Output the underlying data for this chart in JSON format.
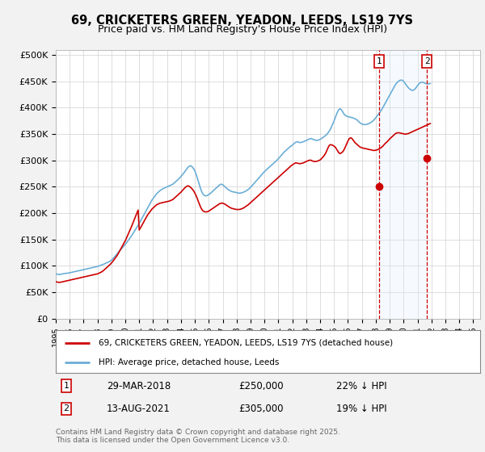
{
  "title": "69, CRICKETERS GREEN, YEADON, LEEDS, LS19 7YS",
  "subtitle": "Price paid vs. HM Land Registry's House Price Index (HPI)",
  "ylabel_ticks": [
    "£0",
    "£50K",
    "£100K",
    "£150K",
    "£200K",
    "£250K",
    "£300K",
    "£350K",
    "£400K",
    "£450K",
    "£500K"
  ],
  "ytick_values": [
    0,
    50000,
    100000,
    150000,
    200000,
    250000,
    300000,
    350000,
    400000,
    450000,
    500000
  ],
  "xlim": [
    1995.0,
    2025.5
  ],
  "ylim": [
    0,
    510000
  ],
  "hpi_color": "#6baed6",
  "price_color": "#cc0000",
  "vline_color": "#cc0000",
  "vline_x1": 2018.25,
  "vline_x2": 2021.67,
  "legend_label1": "69, CRICKETERS GREEN, YEADON, LEEDS, LS19 7YS (detached house)",
  "legend_label2": "HPI: Average price, detached house, Leeds",
  "sale1_date": "29-MAR-2018",
  "sale1_price": "£250,000",
  "sale1_hpi": "22% ↓ HPI",
  "sale2_date": "13-AUG-2021",
  "sale2_price": "£305,000",
  "sale2_hpi": "19% ↓ HPI",
  "footnote": "Contains HM Land Registry data © Crown copyright and database right 2025.\nThis data is licensed under the Open Government Licence v3.0.",
  "bg_color": "#f2f2f2",
  "plot_bg_color": "#ffffff",
  "shade_x1": 2018.25,
  "shade_x2": 2021.67,
  "shade_color": "#ddeeff",
  "hpi_monthly": [
    85000,
    84500,
    84000,
    83800,
    84000,
    84500,
    85000,
    85500,
    85800,
    86000,
    86200,
    86500,
    87000,
    87500,
    88000,
    88500,
    89000,
    89500,
    90000,
    90500,
    91000,
    91500,
    92000,
    92500,
    93000,
    93500,
    94000,
    94500,
    95000,
    95500,
    96000,
    96500,
    97000,
    97500,
    98000,
    98500,
    99000,
    99800,
    100600,
    101400,
    102200,
    103000,
    104000,
    105000,
    106000,
    107000,
    108000,
    109000,
    111000,
    113000,
    115500,
    118000,
    120500,
    123000,
    126000,
    128500,
    131000,
    133500,
    136000,
    138500,
    141000,
    144000,
    147000,
    150000,
    153000,
    156000,
    159500,
    163000,
    166500,
    170000,
    173500,
    177000,
    181000,
    185000,
    189000,
    193000,
    197000,
    201000,
    205000,
    209000,
    213000,
    217000,
    221000,
    225000,
    228000,
    231000,
    234000,
    237000,
    239000,
    241000,
    243000,
    244500,
    246000,
    247000,
    248000,
    249000,
    250000,
    251000,
    252000,
    253000,
    254000,
    255000,
    257000,
    259000,
    261000,
    263000,
    265000,
    267000,
    270000,
    272500,
    275000,
    278000,
    281000,
    284000,
    287000,
    289000,
    290000,
    289000,
    287000,
    284000,
    280000,
    274000,
    267000,
    260000,
    253000,
    246000,
    240000,
    236000,
    234000,
    233000,
    233000,
    234000,
    235500,
    237000,
    239000,
    241000,
    243000,
    245000,
    247000,
    249000,
    251000,
    253000,
    254500,
    255000,
    254000,
    252000,
    250000,
    248000,
    246000,
    244500,
    243000,
    242000,
    241000,
    240500,
    240000,
    239500,
    239000,
    238500,
    238000,
    238000,
    238500,
    239000,
    240000,
    241000,
    242000,
    243500,
    245000,
    247000,
    249000,
    251500,
    254000,
    256500,
    259000,
    261500,
    264000,
    266500,
    269000,
    271500,
    274000,
    276500,
    279000,
    281000,
    283000,
    285000,
    287000,
    289000,
    291000,
    293000,
    295000,
    297000,
    299000,
    301000,
    303500,
    306000,
    308500,
    311000,
    313500,
    316000,
    318000,
    320000,
    322000,
    324000,
    326000,
    327500,
    329000,
    331000,
    333000,
    334500,
    335500,
    335000,
    334000,
    334000,
    334500,
    335000,
    336000,
    337000,
    338000,
    339000,
    340000,
    341000,
    341500,
    341000,
    340000,
    339000,
    338500,
    338000,
    338500,
    339000,
    340000,
    341500,
    343000,
    344500,
    346000,
    348000,
    350000,
    353000,
    356000,
    360000,
    365000,
    370000,
    375000,
    381000,
    387000,
    392000,
    396000,
    398000,
    397000,
    394000,
    390000,
    387000,
    385000,
    384000,
    383000,
    382500,
    382000,
    381500,
    381000,
    380000,
    379000,
    378000,
    376500,
    374000,
    372000,
    370500,
    369000,
    368500,
    368000,
    368000,
    368500,
    369000,
    370000,
    371000,
    372500,
    374000,
    376000,
    378500,
    381000,
    384000,
    387000,
    390000,
    393000,
    396000,
    400000,
    404000,
    408000,
    412000,
    416000,
    420000,
    424000,
    428000,
    432000,
    436000,
    440000,
    444000,
    447000,
    449000,
    451000,
    452000,
    452500,
    452000,
    450000,
    447000,
    444000,
    441000,
    438000,
    436000,
    434500,
    433000,
    433000,
    434000,
    436000,
    439000,
    442000,
    445000,
    447000,
    448000,
    448500,
    448000,
    447000,
    446000,
    445500,
    445000,
    445500,
    446000
  ],
  "price_monthly": [
    70000,
    69500,
    69000,
    68800,
    69000,
    69500,
    70000,
    70500,
    71000,
    71500,
    72000,
    72500,
    73000,
    73500,
    74000,
    74500,
    75000,
    75500,
    76000,
    76500,
    77000,
    77500,
    78000,
    78500,
    79000,
    79500,
    80000,
    80500,
    81000,
    81500,
    82000,
    82500,
    83000,
    83500,
    84000,
    84500,
    85000,
    86000,
    87000,
    88000,
    89500,
    91000,
    93000,
    95000,
    97000,
    99000,
    101000,
    103000,
    105500,
    108000,
    111000,
    114000,
    117000,
    120000,
    124000,
    128000,
    132000,
    136000,
    140000,
    144000,
    148000,
    153000,
    158000,
    163000,
    168000,
    173000,
    178500,
    184000,
    189500,
    195000,
    200500,
    206000,
    168000,
    172000,
    176000,
    180000,
    184000,
    188000,
    192000,
    196000,
    199000,
    202000,
    205000,
    208000,
    210000,
    212000,
    214000,
    216000,
    217000,
    218000,
    219000,
    219500,
    220000,
    220500,
    221000,
    221500,
    222000,
    222500,
    223000,
    224000,
    225000,
    226000,
    228000,
    230000,
    232000,
    234000,
    236000,
    238000,
    240000,
    242500,
    245000,
    247500,
    249500,
    251000,
    252000,
    251000,
    249500,
    247500,
    245000,
    242000,
    238000,
    233500,
    228000,
    222000,
    216500,
    211000,
    207000,
    204500,
    203000,
    202500,
    202500,
    203000,
    204000,
    205500,
    207000,
    208500,
    210000,
    211500,
    213000,
    214500,
    216000,
    217500,
    218500,
    219000,
    219000,
    218000,
    217000,
    215500,
    214000,
    212500,
    211000,
    210000,
    209000,
    208500,
    208000,
    207500,
    207000,
    207000,
    207000,
    207500,
    208000,
    209000,
    210000,
    211500,
    213000,
    214500,
    216000,
    218000,
    220000,
    222000,
    224000,
    226000,
    228000,
    230000,
    232000,
    234000,
    236000,
    238000,
    240000,
    242000,
    244000,
    246000,
    248000,
    250000,
    252000,
    254000,
    256000,
    258000,
    260000,
    262000,
    264000,
    266000,
    268000,
    270000,
    272000,
    274000,
    276000,
    278000,
    280000,
    282000,
    284000,
    286000,
    288000,
    290000,
    291500,
    293000,
    294500,
    295500,
    295000,
    294500,
    294000,
    294000,
    294500,
    295000,
    296000,
    297000,
    298000,
    299000,
    300000,
    300500,
    300500,
    299500,
    298500,
    298000,
    298000,
    298500,
    299000,
    300000,
    301000,
    303000,
    305500,
    308000,
    311000,
    315000,
    320000,
    325000,
    329000,
    330000,
    329500,
    328500,
    327000,
    325500,
    322000,
    318500,
    315000,
    313000,
    314000,
    315500,
    318000,
    322000,
    327000,
    332000,
    337000,
    341000,
    343000,
    342500,
    340000,
    337000,
    334000,
    332000,
    330000,
    328000,
    326000,
    325000,
    324000,
    323500,
    323000,
    322500,
    322000,
    321500,
    321000,
    320500,
    320000,
    319500,
    319000,
    319000,
    319500,
    320000,
    321000,
    322000,
    323500,
    325000,
    327000,
    329500,
    332000,
    334000,
    336000,
    338500,
    341000,
    343000,
    345000,
    347000,
    349000,
    351000,
    352000,
    352500,
    352500,
    352000,
    351500,
    351000,
    350500,
    350000,
    350000,
    350500,
    351000,
    352000,
    353000,
    354000,
    355000,
    356000,
    357000,
    358000,
    359000,
    360000,
    361000,
    362000,
    363000,
    364000,
    365000,
    366000,
    367000,
    368000,
    369000,
    370000
  ],
  "sale1_x": 2018.25,
  "sale1_y": 250000,
  "sale2_x": 2021.67,
  "sale2_y": 305000
}
